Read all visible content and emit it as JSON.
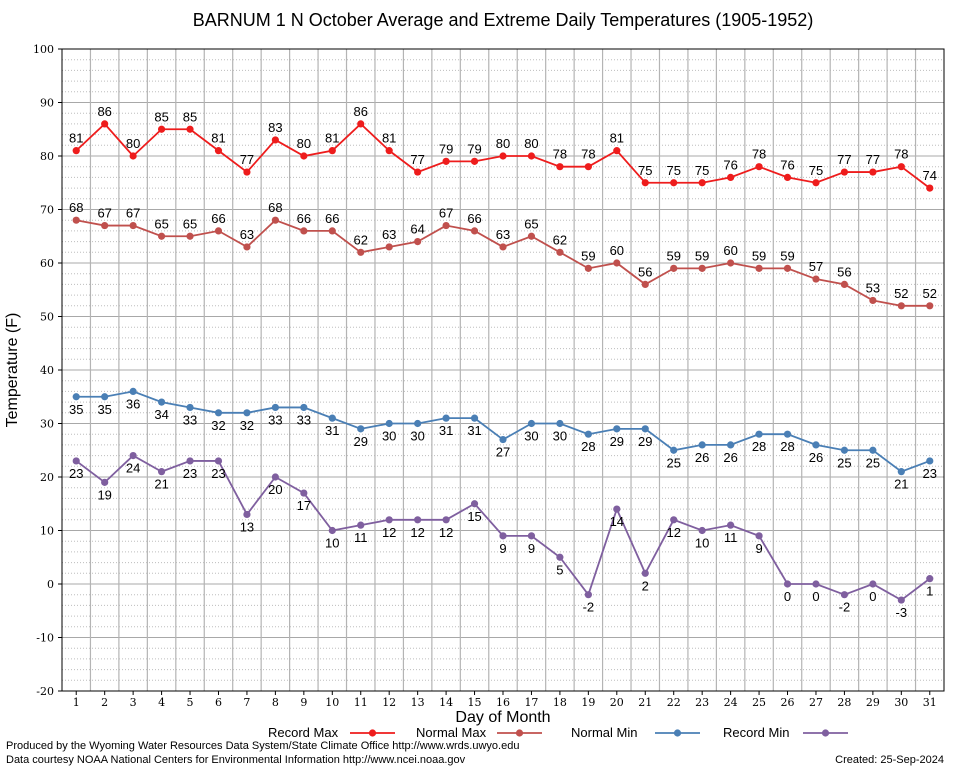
{
  "chart_data": {
    "type": "line",
    "title": "BARNUM 1 N October Average and Extreme Daily Temperatures (1905-1952)",
    "xlabel": "Day of Month",
    "ylabel": "Temperature (F)",
    "ylim": [
      -20,
      100
    ],
    "yticks": [
      "-20",
      "-10",
      "0",
      "10",
      "20",
      "30",
      "40",
      "50",
      "60",
      "70",
      "80",
      "90",
      "100"
    ],
    "grid": true,
    "legend_position": "bottom",
    "x": [
      "1",
      "2",
      "3",
      "4",
      "5",
      "6",
      "7",
      "8",
      "9",
      "10",
      "11",
      "12",
      "13",
      "14",
      "15",
      "16",
      "17",
      "18",
      "19",
      "20",
      "21",
      "22",
      "23",
      "24",
      "25",
      "26",
      "27",
      "28",
      "29",
      "30",
      "31"
    ],
    "series": [
      {
        "name": "Record Max",
        "color": "#ee1c1c",
        "label_position": "above",
        "values": [
          81,
          86,
          80,
          85,
          85,
          81,
          77,
          83,
          80,
          81,
          86,
          81,
          77,
          79,
          79,
          80,
          80,
          78,
          78,
          81,
          75,
          75,
          75,
          76,
          78,
          76,
          75,
          77,
          77,
          78,
          74
        ]
      },
      {
        "name": "Normal Max",
        "color": "#c0504d",
        "label_position": "above",
        "values": [
          68,
          67,
          67,
          65,
          65,
          66,
          63,
          68,
          66,
          66,
          62,
          63,
          64,
          67,
          66,
          63,
          65,
          62,
          59,
          60,
          56,
          59,
          59,
          60,
          59,
          59,
          57,
          56,
          53,
          52,
          52
        ]
      },
      {
        "name": "Normal Min",
        "color": "#4a7fb5",
        "label_position": "below",
        "values": [
          35,
          35,
          36,
          34,
          33,
          32,
          32,
          33,
          33,
          31,
          29,
          30,
          30,
          31,
          31,
          27,
          30,
          30,
          28,
          29,
          29,
          25,
          26,
          26,
          28,
          28,
          26,
          25,
          25,
          21,
          23
        ]
      },
      {
        "name": "Record Min",
        "color": "#7f5f9f",
        "label_position": "below",
        "values": [
          23,
          19,
          24,
          21,
          23,
          23,
          13,
          20,
          17,
          10,
          11,
          12,
          12,
          12,
          15,
          9,
          9,
          5,
          -2,
          14,
          2,
          12,
          10,
          11,
          9,
          0,
          0,
          -2,
          0,
          -3,
          1
        ]
      }
    ]
  },
  "footer": {
    "produced_by": "Produced by the Wyoming Water Resources Data System/State Climate Office http://www.wrds.uwyo.edu",
    "courtesy": "Data courtesy NOAA National Centers for Environmental Information http://www.ncei.noaa.gov",
    "created": "Created:  25-Sep-2024"
  }
}
